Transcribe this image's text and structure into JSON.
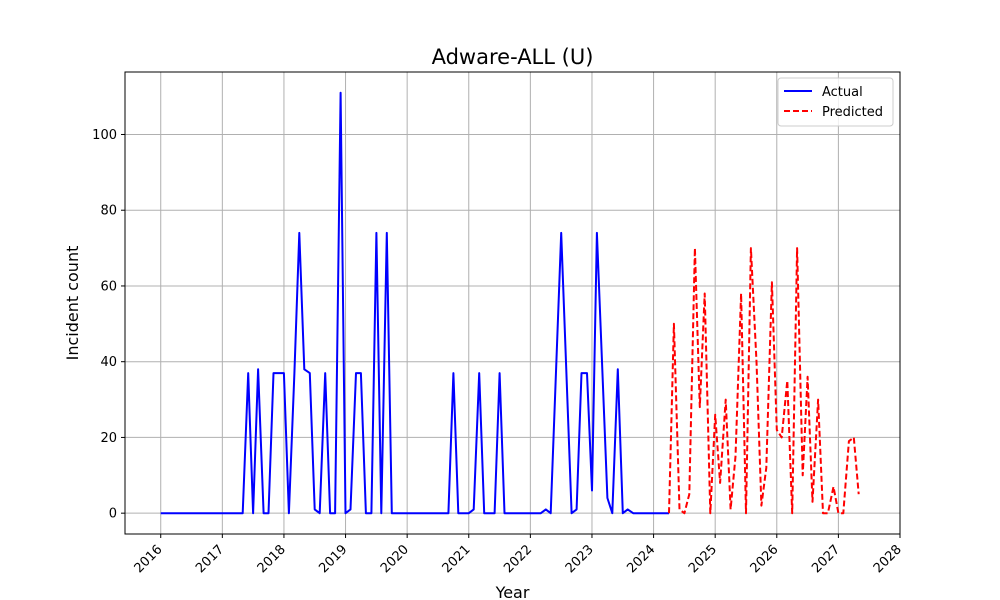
{
  "chart_data": {
    "type": "line",
    "title": "Adware-ALL (U)",
    "xlabel": "Year",
    "ylabel": "Incident count",
    "xlim": [
      2015.42,
      2028.0
    ],
    "ylim": [
      -5.5,
      116.5
    ],
    "xticks": [
      2016,
      2017,
      2018,
      2019,
      2020,
      2021,
      2022,
      2023,
      2024,
      2025,
      2026,
      2027,
      2028
    ],
    "yticks": [
      0,
      20,
      40,
      60,
      80,
      100
    ],
    "grid": true,
    "legend_position": "top-right",
    "series": [
      {
        "name": "Actual",
        "color": "#0000ff",
        "style": "solid",
        "x": [
          2016.0,
          2017.0,
          2017.33,
          2017.42,
          2017.5,
          2017.58,
          2017.67,
          2017.75,
          2017.83,
          2017.92,
          2018.0,
          2018.08,
          2018.17,
          2018.25,
          2018.33,
          2018.42,
          2018.5,
          2018.58,
          2018.67,
          2018.75,
          2018.83,
          2018.92,
          2019.0,
          2019.08,
          2019.17,
          2019.25,
          2019.33,
          2019.42,
          2019.5,
          2019.58,
          2019.67,
          2019.75,
          2019.83,
          2019.92,
          2020.0,
          2020.67,
          2020.75,
          2020.83,
          2021.0,
          2021.08,
          2021.17,
          2021.25,
          2021.42,
          2021.5,
          2021.58,
          2022.17,
          2022.25,
          2022.33,
          2022.5,
          2022.67,
          2022.75,
          2022.83,
          2022.92,
          2023.0,
          2023.08,
          2023.25,
          2023.33,
          2023.42,
          2023.5,
          2023.58,
          2023.67,
          2024.25
        ],
        "values": [
          0,
          0,
          0,
          37,
          0,
          38,
          0,
          0,
          37,
          37,
          37,
          0,
          37,
          74,
          38,
          37,
          1,
          0,
          37,
          0,
          0,
          111,
          0,
          1,
          37,
          37,
          0,
          0,
          74,
          0,
          74,
          0,
          0,
          0,
          0,
          0,
          37,
          0,
          0,
          1,
          37,
          0,
          0,
          37,
          0,
          0,
          1,
          0,
          74,
          0,
          1,
          37,
          37,
          6,
          74,
          4,
          0,
          38,
          0,
          1,
          0,
          0
        ]
      },
      {
        "name": "Predicted",
        "color": "#ff0000",
        "style": "dashed",
        "x": [
          2024.25,
          2024.33,
          2024.42,
          2024.5,
          2024.58,
          2024.67,
          2024.75,
          2024.83,
          2024.92,
          2025.0,
          2025.08,
          2025.17,
          2025.25,
          2025.33,
          2025.42,
          2025.5,
          2025.58,
          2025.67,
          2025.75,
          2025.83,
          2025.92,
          2026.0,
          2026.08,
          2026.17,
          2026.25,
          2026.33,
          2026.42,
          2026.5,
          2026.58,
          2026.67,
          2026.75,
          2026.83,
          2026.92,
          2027.0,
          2027.08,
          2027.17,
          2027.25,
          2027.33
        ],
        "values": [
          0,
          50,
          1,
          0,
          5,
          70,
          28,
          58,
          0,
          26,
          8,
          30,
          1,
          15,
          58,
          0,
          70,
          40,
          2,
          12,
          61,
          22,
          20,
          35,
          0,
          70,
          10,
          36,
          3,
          30,
          0,
          0,
          7,
          0,
          0,
          19,
          20,
          5
        ]
      }
    ]
  }
}
